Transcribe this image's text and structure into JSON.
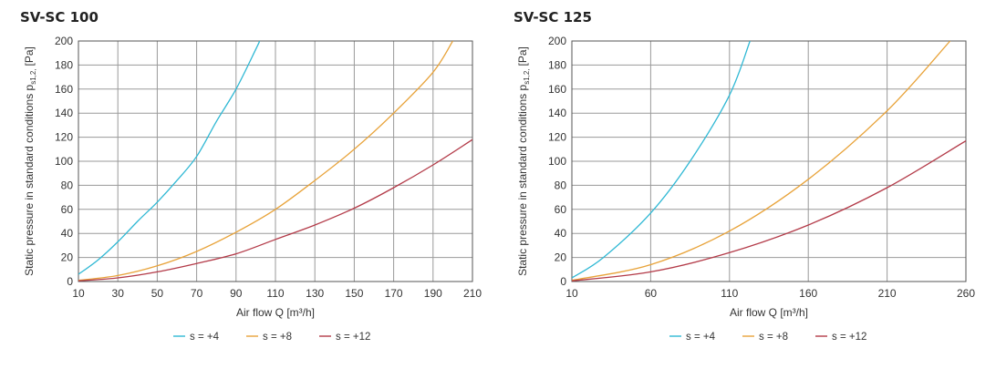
{
  "chart_data": [
    {
      "type": "line",
      "title": "SV-SC 100",
      "xlabel": "Air flow Q [m³/h]",
      "ylabel": "Static pressure in standard conditions p",
      "ylabel_sub": "s1,2,",
      "ylabel_unit": "[Pa]",
      "xlim": [
        10,
        210
      ],
      "ylim": [
        0,
        200
      ],
      "xticks": [
        10,
        30,
        50,
        70,
        90,
        110,
        130,
        150,
        170,
        190,
        210
      ],
      "yticks": [
        0,
        20,
        40,
        60,
        80,
        100,
        120,
        140,
        160,
        180,
        200
      ],
      "grid": true,
      "legend_position": "bottom-center",
      "series": [
        {
          "name": "s = +4",
          "color": "#2fb8d4",
          "x": [
            10,
            20,
            30,
            40,
            50,
            60,
            70,
            80,
            90,
            100,
            102
          ],
          "y": [
            6,
            18,
            33,
            50,
            66,
            84,
            104,
            133,
            160,
            193,
            200
          ]
        },
        {
          "name": "s = +8",
          "color": "#e8a33a",
          "x": [
            10,
            30,
            50,
            70,
            90,
            110,
            130,
            150,
            170,
            190,
            200
          ],
          "y": [
            1,
            5,
            13,
            25,
            41,
            60,
            84,
            110,
            140,
            174,
            200
          ]
        },
        {
          "name": "s = +12",
          "color": "#b33a48",
          "x": [
            10,
            30,
            50,
            70,
            90,
            110,
            130,
            150,
            170,
            190,
            210
          ],
          "y": [
            0.5,
            3,
            8,
            15,
            23,
            35,
            47,
            61,
            78,
            97,
            118
          ]
        }
      ]
    },
    {
      "type": "line",
      "title": "SV-SC 125",
      "xlabel": "Air flow Q [m³/h]",
      "ylabel": "Static pressure in standard conditions p",
      "ylabel_sub": "s1,2,",
      "ylabel_unit": "[Pa]",
      "xlim": [
        10,
        260
      ],
      "ylim": [
        0,
        200
      ],
      "xticks": [
        10,
        60,
        110,
        160,
        210,
        260
      ],
      "yticks": [
        0,
        20,
        40,
        60,
        80,
        100,
        120,
        140,
        160,
        180,
        200
      ],
      "grid": true,
      "legend_position": "bottom-center",
      "series": [
        {
          "name": "s = +4",
          "color": "#2fb8d4",
          "x": [
            10,
            30,
            60,
            85,
            110,
            123
          ],
          "y": [
            3,
            20,
            57,
            100,
            155,
            200
          ]
        },
        {
          "name": "s = +8",
          "color": "#e8a33a",
          "x": [
            10,
            60,
            110,
            160,
            210,
            250
          ],
          "y": [
            1,
            14,
            42,
            85,
            142,
            200
          ]
        },
        {
          "name": "s = +12",
          "color": "#b33a48",
          "x": [
            10,
            60,
            110,
            160,
            210,
            260
          ],
          "y": [
            0.5,
            8,
            24,
            47,
            78,
            117
          ]
        }
      ]
    }
  ]
}
